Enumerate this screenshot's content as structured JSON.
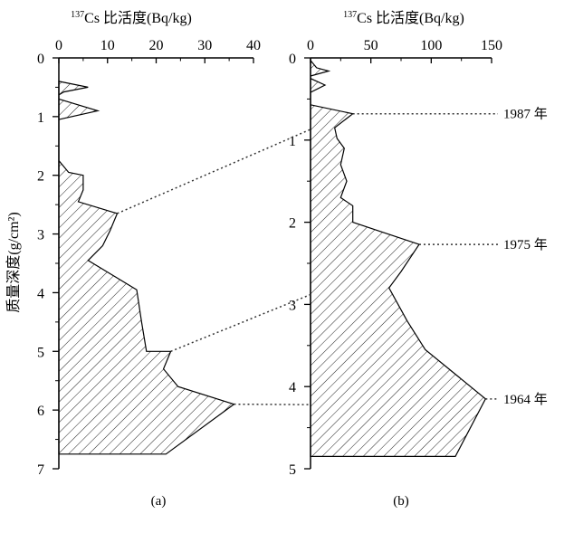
{
  "shared": {
    "ylabel": "质量深度(g/cm²)",
    "xlabel_sup": "137",
    "xlabel_rest": "Cs 比活度(Bq/kg)"
  },
  "chart_data": [
    {
      "panel_label": "(a)",
      "type": "area",
      "orientation": "depth-profile",
      "xlabel": "137Cs 比活度(Bq/kg)",
      "ylabel": "质量深度(g/cm²)",
      "xlim": [
        0,
        40
      ],
      "ylim": [
        7,
        0
      ],
      "xticks": [
        "0",
        "10",
        "20",
        "30",
        "40"
      ],
      "yticks": [
        "0",
        "1",
        "2",
        "3",
        "4",
        "5",
        "6",
        "7"
      ],
      "profile": [
        {
          "x": 0,
          "y": 0.4
        },
        {
          "x": 6,
          "y": 0.5
        },
        {
          "x": 1,
          "y": 0.58
        },
        {
          "x": 0,
          "y": 0.63
        },
        {
          "x": 0,
          "y": 0.7
        },
        {
          "x": 8,
          "y": 0.9
        },
        {
          "x": 0,
          "y": 1.05
        },
        {
          "x": 0,
          "y": 1.75
        },
        {
          "x": 2,
          "y": 1.95
        },
        {
          "x": 5,
          "y": 2.0
        },
        {
          "x": 5,
          "y": 2.25
        },
        {
          "x": 4,
          "y": 2.45
        },
        {
          "x": 12,
          "y": 2.65
        },
        {
          "x": 10.5,
          "y": 2.95
        },
        {
          "x": 9,
          "y": 3.2
        },
        {
          "x": 6,
          "y": 3.45
        },
        {
          "x": 16,
          "y": 3.95
        },
        {
          "x": 17,
          "y": 4.5
        },
        {
          "x": 18,
          "y": 5.0
        },
        {
          "x": 23,
          "y": 5.0
        },
        {
          "x": 21.5,
          "y": 5.3
        },
        {
          "x": 24.5,
          "y": 5.6
        },
        {
          "x": 36,
          "y": 5.9
        },
        {
          "x": 22,
          "y": 6.75
        },
        {
          "x": 0,
          "y": 6.75
        }
      ]
    },
    {
      "panel_label": "(b)",
      "type": "area",
      "orientation": "depth-profile",
      "xlabel": "137Cs 比活度(Bq/kg)",
      "xlim": [
        0,
        150
      ],
      "ylim": [
        5,
        0
      ],
      "xticks": [
        "0",
        "50",
        "100",
        "150"
      ],
      "yticks": [
        "0",
        "1",
        "2",
        "3",
        "4",
        "5"
      ],
      "profile": [
        {
          "x": 0,
          "y": 0.03
        },
        {
          "x": 5,
          "y": 0.12
        },
        {
          "x": 15,
          "y": 0.16
        },
        {
          "x": 0,
          "y": 0.22
        },
        {
          "x": 0,
          "y": 0.25
        },
        {
          "x": 12,
          "y": 0.33
        },
        {
          "x": 0,
          "y": 0.42
        },
        {
          "x": 0,
          "y": 0.57
        },
        {
          "x": 35,
          "y": 0.68
        },
        {
          "x": 20,
          "y": 0.85
        },
        {
          "x": 22,
          "y": 0.98
        },
        {
          "x": 28,
          "y": 1.1
        },
        {
          "x": 25,
          "y": 1.3
        },
        {
          "x": 30,
          "y": 1.5
        },
        {
          "x": 25,
          "y": 1.7
        },
        {
          "x": 35,
          "y": 1.8
        },
        {
          "x": 35,
          "y": 2.0
        },
        {
          "x": 90,
          "y": 2.27
        },
        {
          "x": 75,
          "y": 2.6
        },
        {
          "x": 65,
          "y": 2.8
        },
        {
          "x": 80,
          "y": 3.2
        },
        {
          "x": 95,
          "y": 3.55
        },
        {
          "x": 145,
          "y": 4.15
        },
        {
          "x": 120,
          "y": 4.85
        },
        {
          "x": 0,
          "y": 4.85
        }
      ],
      "annotations": [
        {
          "text": "1987 年",
          "y": 0.68,
          "x_from": 35
        },
        {
          "text": "1975 年",
          "y": 2.27,
          "x_from": 90
        },
        {
          "text": "1964 年",
          "y": 4.15,
          "x_from": 145
        }
      ]
    }
  ],
  "correlations": [
    {
      "from": {
        "panel": 0,
        "x": 12,
        "y": 2.65
      },
      "to": {
        "panel": 1,
        "x": 0,
        "y": 0.87
      }
    },
    {
      "from": {
        "panel": 0,
        "x": 23,
        "y": 5.0
      },
      "to": {
        "panel": 1,
        "x": 0,
        "y": 2.88
      }
    },
    {
      "from": {
        "panel": 0,
        "x": 36,
        "y": 5.9
      },
      "to": {
        "panel": 1,
        "x": 0,
        "y": 4.22
      }
    }
  ]
}
